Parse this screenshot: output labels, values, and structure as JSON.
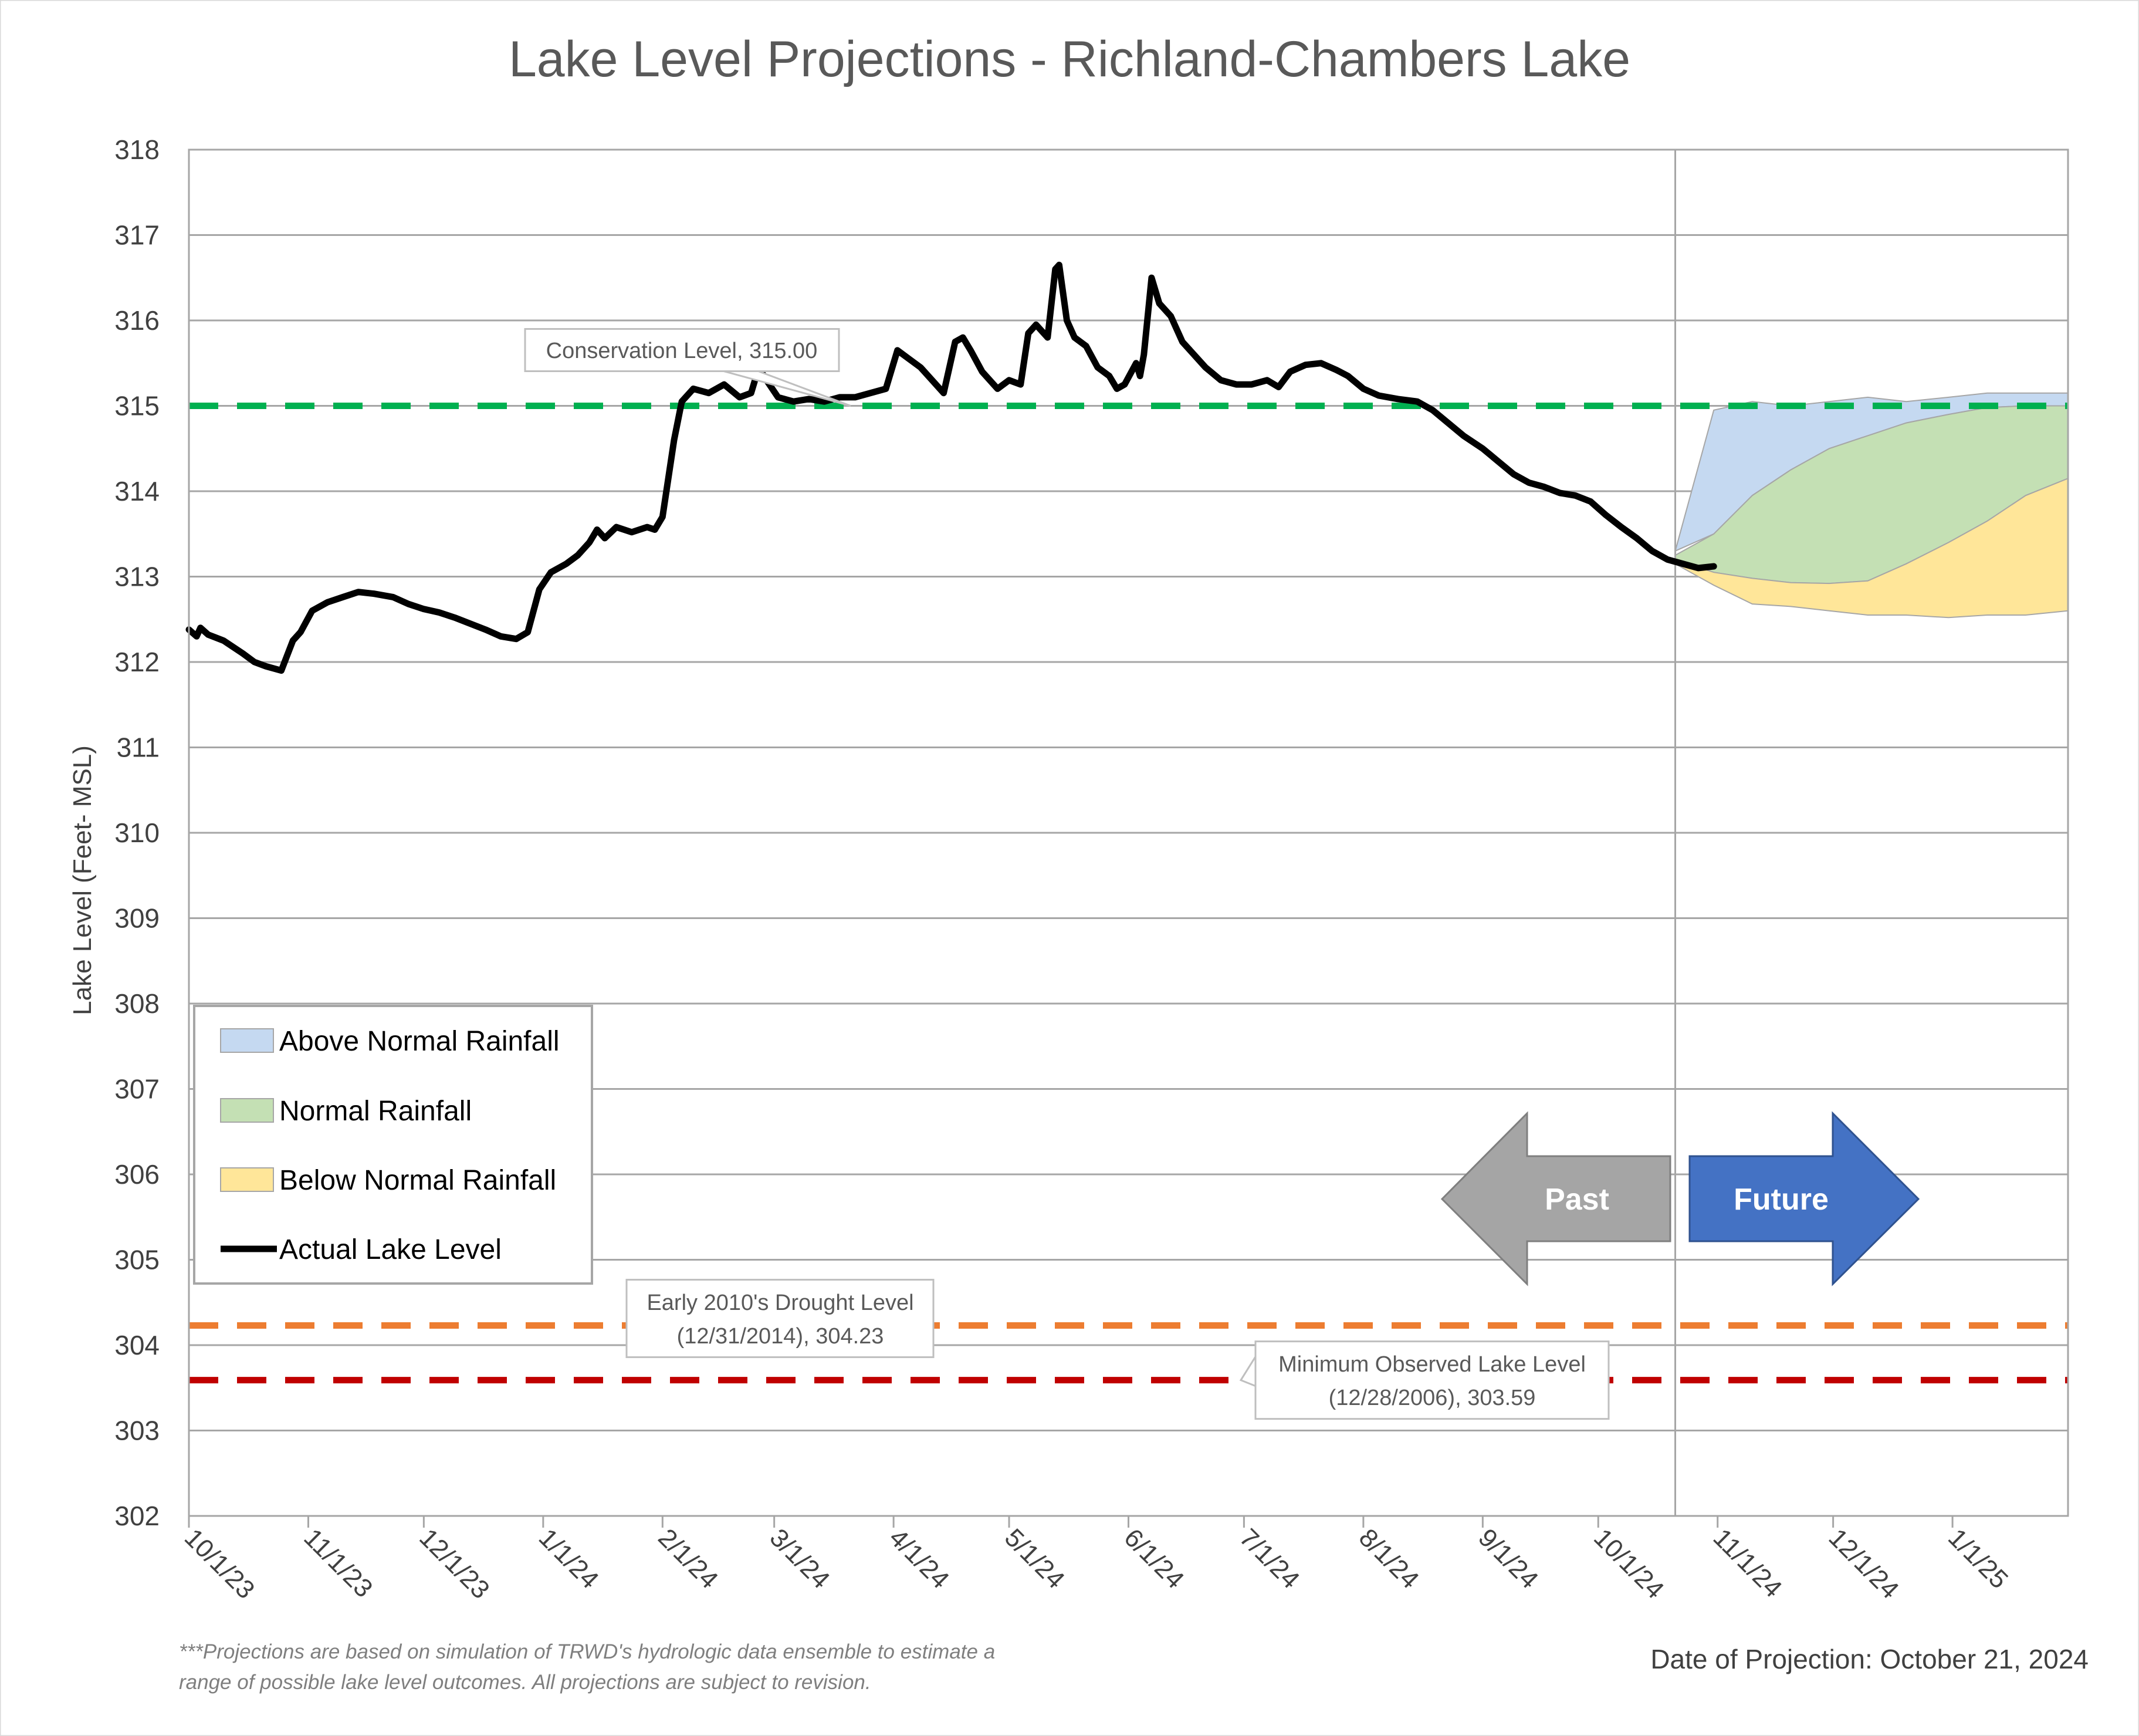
{
  "chart_data": {
    "type": "area",
    "title": "Lake Level Projections - Richland-Chambers Lake",
    "ylabel": "Lake Level (Feet- MSL)",
    "xlabel": "",
    "ylim": [
      302,
      318
    ],
    "y_ticks": [
      302,
      303,
      304,
      305,
      306,
      307,
      308,
      309,
      310,
      311,
      312,
      313,
      314,
      315,
      316,
      317,
      318
    ],
    "x_tick_labels": [
      "10/1/23",
      "11/1/23",
      "12/1/23",
      "1/1/24",
      "2/1/24",
      "3/1/24",
      "4/1/24",
      "5/1/24",
      "6/1/24",
      "7/1/24",
      "8/1/24",
      "9/1/24",
      "10/1/24",
      "11/1/24",
      "12/1/24",
      "1/1/25"
    ],
    "x_range": [
      "2023-10-01",
      "2025-01-31"
    ],
    "projection_date": "2024-10-21",
    "grid": true,
    "legend_placement": "bottom-left",
    "colors": {
      "above_normal": "#c5d9f1",
      "normal": "#c4e0b4",
      "below_normal": "#ffe699",
      "actual": "#000000",
      "conservation": "#00b050",
      "drought": "#ed7d31",
      "minimum": "#c00000",
      "past_arrow": "#a5a5a5",
      "future_arrow": "#4472c4"
    },
    "legend": [
      {
        "key": "above_normal",
        "label": "Above Normal Rainfall"
      },
      {
        "key": "normal",
        "label": "Normal Rainfall"
      },
      {
        "key": "below_normal",
        "label": "Below Normal Rainfall"
      },
      {
        "key": "actual",
        "label": "Actual Lake Level"
      }
    ],
    "reference_lines": [
      {
        "key": "conservation",
        "value": 315.0,
        "label_lines": [
          "Conservation Level, 315.00"
        ]
      },
      {
        "key": "drought",
        "value": 304.23,
        "label_lines": [
          "Early 2010's Drought Level",
          "(12/31/2014), 304.23"
        ]
      },
      {
        "key": "minimum",
        "value": 303.59,
        "label_lines": [
          "Minimum Observed Lake Level",
          "(12/28/2006), 303.59"
        ]
      }
    ],
    "actual_series": {
      "name": "Actual Lake Level",
      "points": [
        [
          "2023-10-01",
          312.38
        ],
        [
          "2023-10-03",
          312.3
        ],
        [
          "2023-10-04",
          312.4
        ],
        [
          "2023-10-06",
          312.32
        ],
        [
          "2023-10-10",
          312.25
        ],
        [
          "2023-10-15",
          312.1
        ],
        [
          "2023-10-18",
          312.0
        ],
        [
          "2023-10-21",
          311.95
        ],
        [
          "2023-10-25",
          311.9
        ],
        [
          "2023-10-28",
          312.25
        ],
        [
          "2023-10-30",
          312.35
        ],
        [
          "2023-11-02",
          312.6
        ],
        [
          "2023-11-06",
          312.7
        ],
        [
          "2023-11-10",
          312.76
        ],
        [
          "2023-11-14",
          312.82
        ],
        [
          "2023-11-18",
          312.8
        ],
        [
          "2023-11-23",
          312.76
        ],
        [
          "2023-11-27",
          312.68
        ],
        [
          "2023-12-01",
          312.62
        ],
        [
          "2023-12-05",
          312.58
        ],
        [
          "2023-12-09",
          312.52
        ],
        [
          "2023-12-13",
          312.45
        ],
        [
          "2023-12-17",
          312.38
        ],
        [
          "2023-12-21",
          312.3
        ],
        [
          "2023-12-25",
          312.27
        ],
        [
          "2023-12-28",
          312.35
        ],
        [
          "2023-12-31",
          312.85
        ],
        [
          "2024-01-03",
          313.05
        ],
        [
          "2024-01-07",
          313.15
        ],
        [
          "2024-01-10",
          313.25
        ],
        [
          "2024-01-13",
          313.4
        ],
        [
          "2024-01-15",
          313.55
        ],
        [
          "2024-01-17",
          313.45
        ],
        [
          "2024-01-20",
          313.58
        ],
        [
          "2024-01-24",
          313.52
        ],
        [
          "2024-01-28",
          313.58
        ],
        [
          "2024-01-30",
          313.55
        ],
        [
          "2024-02-01",
          313.7
        ],
        [
          "2024-02-04",
          314.6
        ],
        [
          "2024-02-06",
          315.05
        ],
        [
          "2024-02-09",
          315.2
        ],
        [
          "2024-02-13",
          315.15
        ],
        [
          "2024-02-17",
          315.25
        ],
        [
          "2024-02-21",
          315.1
        ],
        [
          "2024-02-24",
          315.15
        ],
        [
          "2024-02-26",
          315.45
        ],
        [
          "2024-02-28",
          315.3
        ],
        [
          "2024-03-02",
          315.1
        ],
        [
          "2024-03-06",
          315.05
        ],
        [
          "2024-03-10",
          315.08
        ],
        [
          "2024-03-14",
          315.05
        ],
        [
          "2024-03-18",
          315.1
        ],
        [
          "2024-03-22",
          315.1
        ],
        [
          "2024-03-26",
          315.15
        ],
        [
          "2024-03-30",
          315.2
        ],
        [
          "2024-04-02",
          315.65
        ],
        [
          "2024-04-05",
          315.55
        ],
        [
          "2024-04-08",
          315.45
        ],
        [
          "2024-04-11",
          315.3
        ],
        [
          "2024-04-14",
          315.15
        ],
        [
          "2024-04-17",
          315.75
        ],
        [
          "2024-04-19",
          315.8
        ],
        [
          "2024-04-21",
          315.65
        ],
        [
          "2024-04-24",
          315.4
        ],
        [
          "2024-04-28",
          315.2
        ],
        [
          "2024-05-01",
          315.3
        ],
        [
          "2024-05-04",
          315.25
        ],
        [
          "2024-05-06",
          315.85
        ],
        [
          "2024-05-08",
          315.95
        ],
        [
          "2024-05-11",
          315.8
        ],
        [
          "2024-05-13",
          316.6
        ],
        [
          "2024-05-14",
          316.65
        ],
        [
          "2024-05-16",
          316.0
        ],
        [
          "2024-05-18",
          315.8
        ],
        [
          "2024-05-21",
          315.7
        ],
        [
          "2024-05-24",
          315.45
        ],
        [
          "2024-05-27",
          315.35
        ],
        [
          "2024-05-29",
          315.2
        ],
        [
          "2024-05-31",
          315.25
        ],
        [
          "2024-06-03",
          315.5
        ],
        [
          "2024-06-04",
          315.35
        ],
        [
          "2024-06-05",
          315.6
        ],
        [
          "2024-06-07",
          316.5
        ],
        [
          "2024-06-09",
          316.2
        ],
        [
          "2024-06-12",
          316.05
        ],
        [
          "2024-06-15",
          315.75
        ],
        [
          "2024-06-18",
          315.6
        ],
        [
          "2024-06-21",
          315.45
        ],
        [
          "2024-06-25",
          315.3
        ],
        [
          "2024-06-29",
          315.25
        ],
        [
          "2024-07-03",
          315.25
        ],
        [
          "2024-07-07",
          315.3
        ],
        [
          "2024-07-10",
          315.22
        ],
        [
          "2024-07-13",
          315.4
        ],
        [
          "2024-07-17",
          315.48
        ],
        [
          "2024-07-21",
          315.5
        ],
        [
          "2024-07-25",
          315.42
        ],
        [
          "2024-07-28",
          315.35
        ],
        [
          "2024-08-01",
          315.2
        ],
        [
          "2024-08-05",
          315.12
        ],
        [
          "2024-08-10",
          315.08
        ],
        [
          "2024-08-15",
          315.05
        ],
        [
          "2024-08-19",
          314.95
        ],
        [
          "2024-08-23",
          314.8
        ],
        [
          "2024-08-27",
          314.65
        ],
        [
          "2024-09-01",
          314.5
        ],
        [
          "2024-09-05",
          314.35
        ],
        [
          "2024-09-09",
          314.2
        ],
        [
          "2024-09-13",
          314.1
        ],
        [
          "2024-09-17",
          314.05
        ],
        [
          "2024-09-21",
          313.98
        ],
        [
          "2024-09-25",
          313.95
        ],
        [
          "2024-09-29",
          313.88
        ],
        [
          "2024-10-03",
          313.72
        ],
        [
          "2024-10-07",
          313.58
        ],
        [
          "2024-10-11",
          313.45
        ],
        [
          "2024-10-15",
          313.3
        ],
        [
          "2024-10-19",
          313.2
        ],
        [
          "2024-10-23",
          313.15
        ],
        [
          "2024-10-27",
          313.1
        ],
        [
          "2024-10-31",
          313.12
        ]
      ]
    },
    "projection_dates": [
      "2024-10-21",
      "2024-10-31",
      "2024-11-10",
      "2024-11-20",
      "2024-11-30",
      "2024-12-10",
      "2024-12-20",
      "2024-12-31",
      "2025-01-10",
      "2025-01-20",
      "2025-01-31"
    ],
    "projection_bands": [
      {
        "key": "above_normal",
        "name": "Above Normal Rainfall",
        "upper": [
          313.3,
          314.95,
          315.05,
          315.0,
          315.05,
          315.1,
          315.05,
          315.1,
          315.15,
          315.15,
          315.15
        ],
        "lower": [
          313.3,
          313.5,
          313.95,
          314.25,
          314.5,
          314.65,
          314.8,
          314.9,
          314.98,
          315.0,
          315.0
        ]
      },
      {
        "key": "normal",
        "name": "Normal Rainfall",
        "upper": [
          313.25,
          313.5,
          313.95,
          314.25,
          314.5,
          314.65,
          314.8,
          314.9,
          314.98,
          315.0,
          315.0
        ],
        "lower": [
          313.2,
          313.05,
          312.98,
          312.93,
          312.92,
          312.95,
          313.15,
          313.4,
          313.65,
          313.95,
          314.15
        ]
      },
      {
        "key": "below_normal",
        "name": "Below Normal Rainfall",
        "upper": [
          313.2,
          313.05,
          312.98,
          312.93,
          312.92,
          312.95,
          313.15,
          313.4,
          313.65,
          313.95,
          314.15
        ],
        "lower": [
          313.15,
          312.9,
          312.68,
          312.65,
          312.6,
          312.55,
          312.55,
          312.52,
          312.55,
          312.55,
          312.6
        ]
      }
    ],
    "annotations": {
      "past_label": "Past",
      "future_label": "Future",
      "date_of_projection": "Date of Projection: October 21, 2024",
      "footnote_lines": [
        "***Projections are based on simulation of TRWD's hydrologic data ensemble to estimate a",
        "range of possible lake level outcomes.  All projections are subject to revision."
      ]
    }
  }
}
